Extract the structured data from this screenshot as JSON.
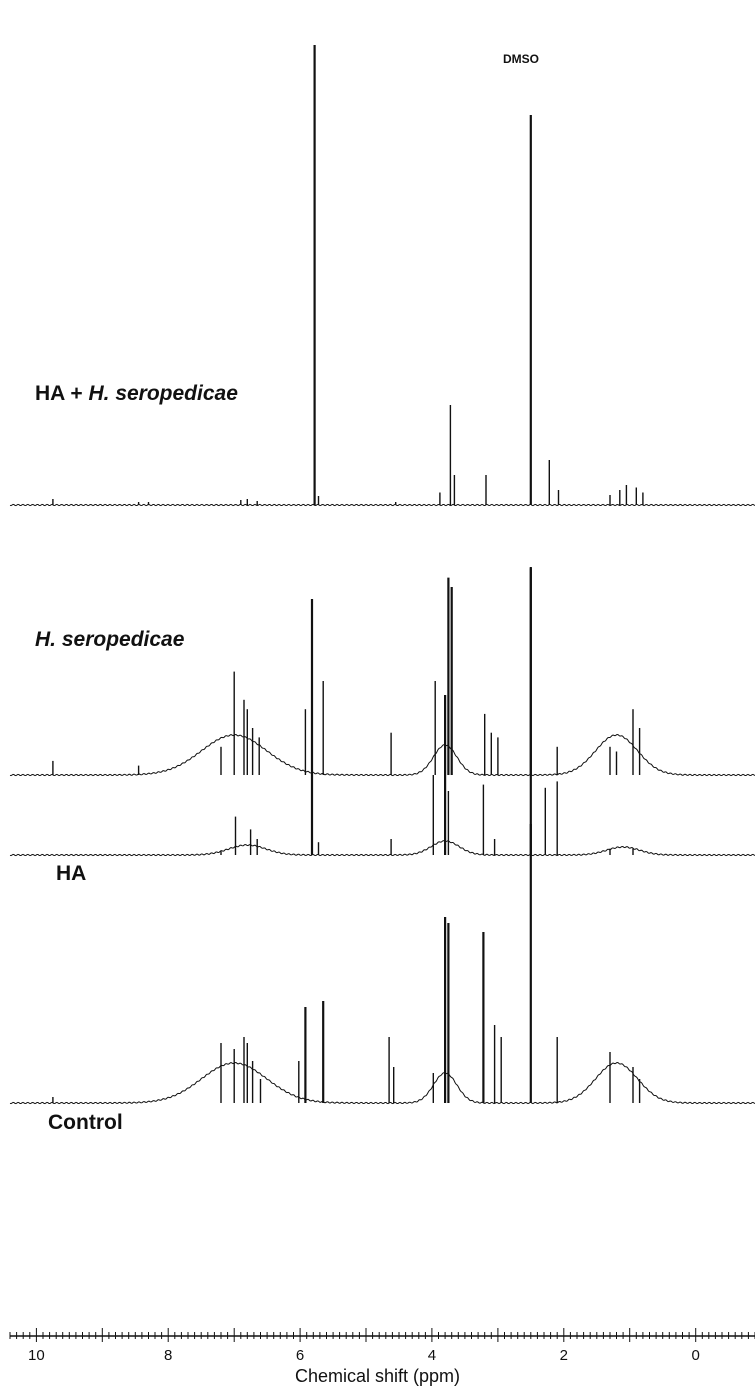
{
  "chart_data": {
    "type": "line",
    "xlabel": "Chemical shift (ppm)",
    "x_ticks": [
      10,
      8,
      6,
      4,
      2,
      0
    ],
    "xlim": [
      10.4,
      -0.9
    ],
    "x_reversed": true,
    "annotation": "DMSO",
    "annotation_ppm": 2.5,
    "series": [
      {
        "label_main": "HA + ",
        "label_italic": "H. seropedicae",
        "peaks": [
          {
            "ppm": 9.75,
            "h": 0.012
          },
          {
            "ppm": 8.45,
            "h": 0.006
          },
          {
            "ppm": 8.3,
            "h": 0.006
          },
          {
            "ppm": 6.9,
            "h": 0.01
          },
          {
            "ppm": 6.8,
            "h": 0.012
          },
          {
            "ppm": 6.65,
            "h": 0.008
          },
          {
            "ppm": 5.78,
            "h": 0.92
          },
          {
            "ppm": 5.72,
            "h": 0.018
          },
          {
            "ppm": 4.55,
            "h": 0.006
          },
          {
            "ppm": 3.88,
            "h": 0.025
          },
          {
            "ppm": 3.72,
            "h": 0.2
          },
          {
            "ppm": 3.66,
            "h": 0.06
          },
          {
            "ppm": 3.18,
            "h": 0.06
          },
          {
            "ppm": 2.5,
            "h": 0.78
          },
          {
            "ppm": 2.22,
            "h": 0.09
          },
          {
            "ppm": 2.08,
            "h": 0.03
          },
          {
            "ppm": 1.3,
            "h": 0.02
          },
          {
            "ppm": 1.15,
            "h": 0.03
          },
          {
            "ppm": 1.05,
            "h": 0.04
          },
          {
            "ppm": 0.9,
            "h": 0.035
          },
          {
            "ppm": 0.8,
            "h": 0.025
          }
        ]
      },
      {
        "label_main": "",
        "label_italic": "H. seropedicae",
        "peaks": [
          {
            "ppm": 9.75,
            "h": 0.03
          },
          {
            "ppm": 8.45,
            "h": 0.02
          },
          {
            "ppm": 7.2,
            "h": 0.06
          },
          {
            "ppm": 7.0,
            "h": 0.22
          },
          {
            "ppm": 6.85,
            "h": 0.16
          },
          {
            "ppm": 6.8,
            "h": 0.14
          },
          {
            "ppm": 6.72,
            "h": 0.1
          },
          {
            "ppm": 6.62,
            "h": 0.08
          },
          {
            "ppm": 5.92,
            "h": 0.14
          },
          {
            "ppm": 5.65,
            "h": 0.2
          },
          {
            "ppm": 4.62,
            "h": 0.09
          },
          {
            "ppm": 3.95,
            "h": 0.2
          },
          {
            "ppm": 3.75,
            "h": 0.42
          },
          {
            "ppm": 3.7,
            "h": 0.4
          },
          {
            "ppm": 3.2,
            "h": 0.13
          },
          {
            "ppm": 3.1,
            "h": 0.09
          },
          {
            "ppm": 3.0,
            "h": 0.08
          },
          {
            "ppm": 2.5,
            "h": 0.44
          },
          {
            "ppm": 2.1,
            "h": 0.06
          },
          {
            "ppm": 1.3,
            "h": 0.06
          },
          {
            "ppm": 1.2,
            "h": 0.05
          },
          {
            "ppm": 0.95,
            "h": 0.14
          },
          {
            "ppm": 0.85,
            "h": 0.1
          }
        ]
      },
      {
        "label_main": "HA",
        "label_italic": "",
        "peaks": [
          {
            "ppm": 7.2,
            "h": 0.012
          },
          {
            "ppm": 6.98,
            "h": 0.12
          },
          {
            "ppm": 6.75,
            "h": 0.08
          },
          {
            "ppm": 6.65,
            "h": 0.05
          },
          {
            "ppm": 5.82,
            "h": 0.8
          },
          {
            "ppm": 5.72,
            "h": 0.04
          },
          {
            "ppm": 4.62,
            "h": 0.05
          },
          {
            "ppm": 3.98,
            "h": 0.25
          },
          {
            "ppm": 3.8,
            "h": 0.5
          },
          {
            "ppm": 3.75,
            "h": 0.2
          },
          {
            "ppm": 3.22,
            "h": 0.22
          },
          {
            "ppm": 3.05,
            "h": 0.05
          },
          {
            "ppm": 2.5,
            "h": 0.9
          },
          {
            "ppm": 2.28,
            "h": 0.21
          },
          {
            "ppm": 2.1,
            "h": 0.23
          },
          {
            "ppm": 1.3,
            "h": 0.02
          },
          {
            "ppm": 0.95,
            "h": 0.02
          }
        ]
      },
      {
        "label_main": "Control",
        "label_italic": "",
        "peaks": [
          {
            "ppm": 9.75,
            "h": 0.02
          },
          {
            "ppm": 7.2,
            "h": 0.2
          },
          {
            "ppm": 7.0,
            "h": 0.18
          },
          {
            "ppm": 6.85,
            "h": 0.22
          },
          {
            "ppm": 6.8,
            "h": 0.2
          },
          {
            "ppm": 6.72,
            "h": 0.14
          },
          {
            "ppm": 6.6,
            "h": 0.08
          },
          {
            "ppm": 6.02,
            "h": 0.14
          },
          {
            "ppm": 5.92,
            "h": 0.32
          },
          {
            "ppm": 5.65,
            "h": 0.34
          },
          {
            "ppm": 4.65,
            "h": 0.22
          },
          {
            "ppm": 4.58,
            "h": 0.12
          },
          {
            "ppm": 3.98,
            "h": 0.1
          },
          {
            "ppm": 3.8,
            "h": 0.62
          },
          {
            "ppm": 3.75,
            "h": 0.6
          },
          {
            "ppm": 3.22,
            "h": 0.57
          },
          {
            "ppm": 3.05,
            "h": 0.26
          },
          {
            "ppm": 2.95,
            "h": 0.22
          },
          {
            "ppm": 2.5,
            "h": 0.93
          },
          {
            "ppm": 2.1,
            "h": 0.22
          },
          {
            "ppm": 1.3,
            "h": 0.17
          },
          {
            "ppm": 0.95,
            "h": 0.12
          },
          {
            "ppm": 0.85,
            "h": 0.08
          }
        ]
      }
    ]
  }
}
